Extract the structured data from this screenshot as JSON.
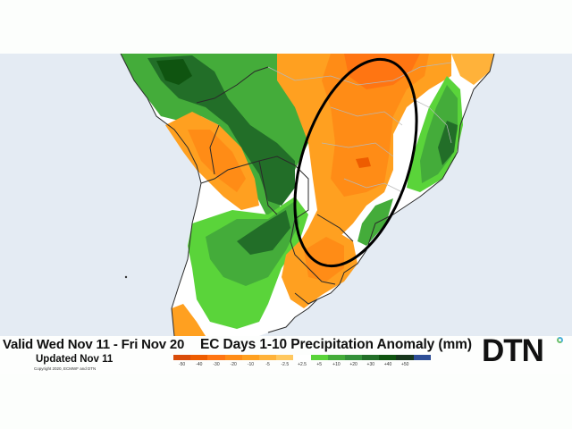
{
  "header": {
    "valid_period": "Valid Wed Nov 11 - Fri Nov 20",
    "updated": "Updated Nov 11",
    "copyright": "Copyright 2020, ECMWF and DTN"
  },
  "map": {
    "title": "EC Days 1-10 Precipitation Anomaly (mm)",
    "region": "South America",
    "annotation": "black ellipse highlighting dry area over southern Brazil",
    "colors": {
      "ocean": "#e4ebf3",
      "border": "#2a2a2a",
      "state_border": "#b8b8b8",
      "ellipse": "#000000"
    }
  },
  "legend": {
    "bins": [
      {
        "label": "-50",
        "color": "#d94c0a"
      },
      {
        "label": "-40",
        "color": "#ee5c00"
      },
      {
        "label": "-30",
        "color": "#ff7512"
      },
      {
        "label": "-20",
        "color": "#ff8c16"
      },
      {
        "label": "-10",
        "color": "#ffa020"
      },
      {
        "label": "-5",
        "color": "#ffb23a"
      },
      {
        "label": "-2.5",
        "color": "#ffc860"
      },
      {
        "label": "+2.5",
        "color": "#ffffff"
      },
      {
        "label": "+5",
        "color": "#5ad43a"
      },
      {
        "label": "+10",
        "color": "#44ac3a"
      },
      {
        "label": "+20",
        "color": "#34903a"
      },
      {
        "label": "+30",
        "color": "#226e28"
      },
      {
        "label": "+40",
        "color": "#0f5410"
      },
      {
        "label": "+50",
        "color": "#16361c"
      },
      {
        "label": "",
        "color": "#2e4e96"
      }
    ],
    "tick_labels": [
      "-50",
      "-40",
      "-30",
      "-20",
      "-10",
      "-5",
      "-2.5",
      "+2.5",
      "+5",
      "+10",
      "+20",
      "+30",
      "+40",
      "+50"
    ]
  },
  "branding": {
    "logo_text": "DTN",
    "logo_dot_colors": [
      "#4ab0d8",
      "#6cc06c"
    ]
  }
}
